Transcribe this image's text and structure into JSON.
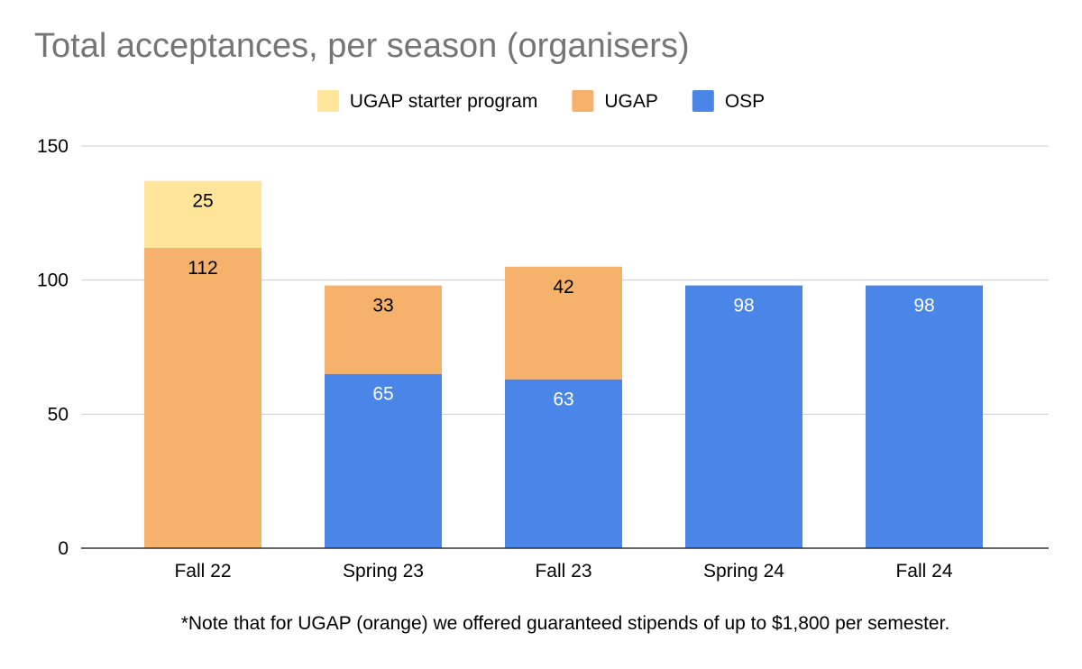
{
  "chart_data": {
    "type": "bar",
    "stacked": true,
    "title": "Total acceptances, per season (organisers)",
    "xlabel": "",
    "ylabel": "",
    "ylim": [
      0,
      150
    ],
    "yticks": [
      0,
      50,
      100,
      150
    ],
    "categories": [
      "Fall 22",
      "Spring 23",
      "Fall 23",
      "Spring 24",
      "Fall 24"
    ],
    "series": [
      {
        "name": "OSP",
        "color": "#4a86e8",
        "label_color": "#ffffff",
        "values": [
          0,
          65,
          63,
          98,
          98
        ]
      },
      {
        "name": "UGAP",
        "color": "#f6b26b",
        "label_color": "#000000",
        "values": [
          112,
          33,
          42,
          0,
          0
        ]
      },
      {
        "name": "UGAP starter program",
        "color": "#ffe599",
        "label_color": "#000000",
        "values": [
          25,
          0,
          0,
          0,
          0
        ]
      }
    ],
    "legend_order": [
      "UGAP starter program",
      "UGAP",
      "OSP"
    ],
    "legend_position": "top",
    "grid": true,
    "note": "*Note that for UGAP (orange) we offered guaranteed stipends of up to $1,800 per semester."
  }
}
